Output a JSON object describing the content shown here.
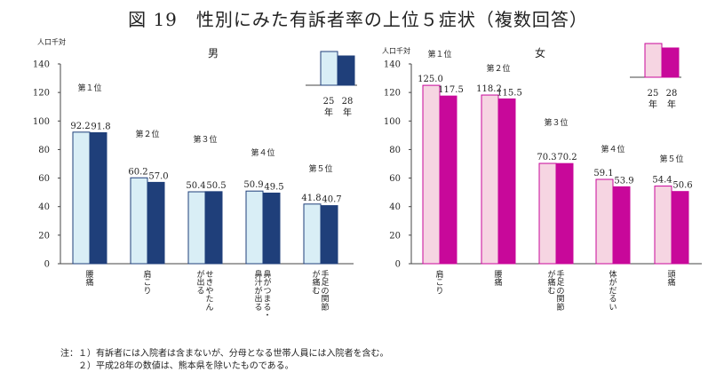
{
  "title": "図 19　性別にみた有訴者率の上位５症状（複数回答）",
  "legend_labels": {
    "y25": [
      "25",
      "年"
    ],
    "y28": [
      "28",
      "年"
    ]
  },
  "colors": {
    "male_25": "#d9eef6",
    "male_28": "#1f3f7a",
    "female_25": "#f6d5e2",
    "female_28": "#c8089a",
    "edge_m": "#1f3f7a",
    "edge_f": "#c8089a"
  },
  "notes": [
    "注：１）有訴者には入院者は含まないが、分母となる世帯人員には入院者を含む。",
    "　　２）平成28年の数値は、熊本県を除いたものである。"
  ],
  "chart_data": [
    {
      "type": "bar",
      "title": "男",
      "ylabel": "人口千対",
      "ylim": [
        0,
        140
      ],
      "yticks": [
        0,
        20,
        40,
        60,
        80,
        100,
        120,
        140
      ],
      "ranks": [
        "第１位",
        "第２位",
        "第３位",
        "第４位",
        "第５位"
      ],
      "categories": [
        "腰痛",
        "肩こり",
        "せきやたんが出る",
        "鼻がつまる・鼻汁が出る",
        "手足の関節が痛む"
      ],
      "category_lines": [
        [
          "腰",
          "痛"
        ],
        [
          "肩",
          "こ",
          "り"
        ],
        [
          "せ",
          "き",
          "や",
          "た",
          "ん",
          "が",
          "出",
          "る"
        ],
        [
          "鼻",
          "が",
          "つ",
          "ま",
          "る",
          "・",
          "鼻",
          "汁",
          "が",
          "出",
          "る"
        ],
        [
          "手",
          "足",
          "の",
          "関",
          "節",
          "が",
          "痛",
          "む"
        ]
      ],
      "category_columns": [
        [
          [
            "腰",
            "痛"
          ]
        ],
        [
          [
            "肩",
            "こ",
            "り"
          ]
        ],
        [
          [
            "せ",
            "き",
            "や",
            "た",
            "ん"
          ],
          [
            "が",
            "出",
            "る"
          ]
        ],
        [
          [
            "鼻",
            "が",
            "つ",
            "ま",
            "る",
            "・"
          ],
          [
            "鼻",
            "汁",
            "が",
            "出",
            "る"
          ]
        ],
        [
          [
            "手",
            "足",
            "の",
            "関",
            "節"
          ],
          [
            "が",
            "痛",
            "む"
          ]
        ]
      ],
      "series": [
        {
          "name": "25年",
          "values": [
            92.2,
            60.2,
            50.4,
            50.9,
            41.8
          ]
        },
        {
          "name": "28年",
          "values": [
            91.8,
            57.0,
            50.5,
            49.5,
            40.7
          ]
        }
      ]
    },
    {
      "type": "bar",
      "title": "女",
      "ylabel": "人口千対",
      "ylim": [
        0,
        140
      ],
      "yticks": [
        0,
        20,
        40,
        60,
        80,
        100,
        120,
        140
      ],
      "ranks": [
        "第１位",
        "第２位",
        "第３位",
        "第４位",
        "第５位"
      ],
      "categories": [
        "肩こり",
        "腰痛",
        "手足の関節が痛む",
        "体がだるい",
        "頭痛"
      ],
      "category_columns": [
        [
          [
            "肩",
            "こ",
            "り"
          ]
        ],
        [
          [
            "腰",
            "痛"
          ]
        ],
        [
          [
            "手",
            "足",
            "の",
            "関",
            "節"
          ],
          [
            "が",
            "痛",
            "む"
          ]
        ],
        [
          [
            "体",
            "が",
            "だ",
            "る",
            "い"
          ]
        ],
        [
          [
            "頭",
            "痛"
          ]
        ]
      ],
      "series": [
        {
          "name": "25年",
          "values": [
            125.0,
            118.2,
            70.3,
            59.1,
            54.4
          ]
        },
        {
          "name": "28年",
          "values": [
            117.5,
            115.5,
            70.2,
            53.9,
            50.6
          ]
        }
      ]
    }
  ]
}
